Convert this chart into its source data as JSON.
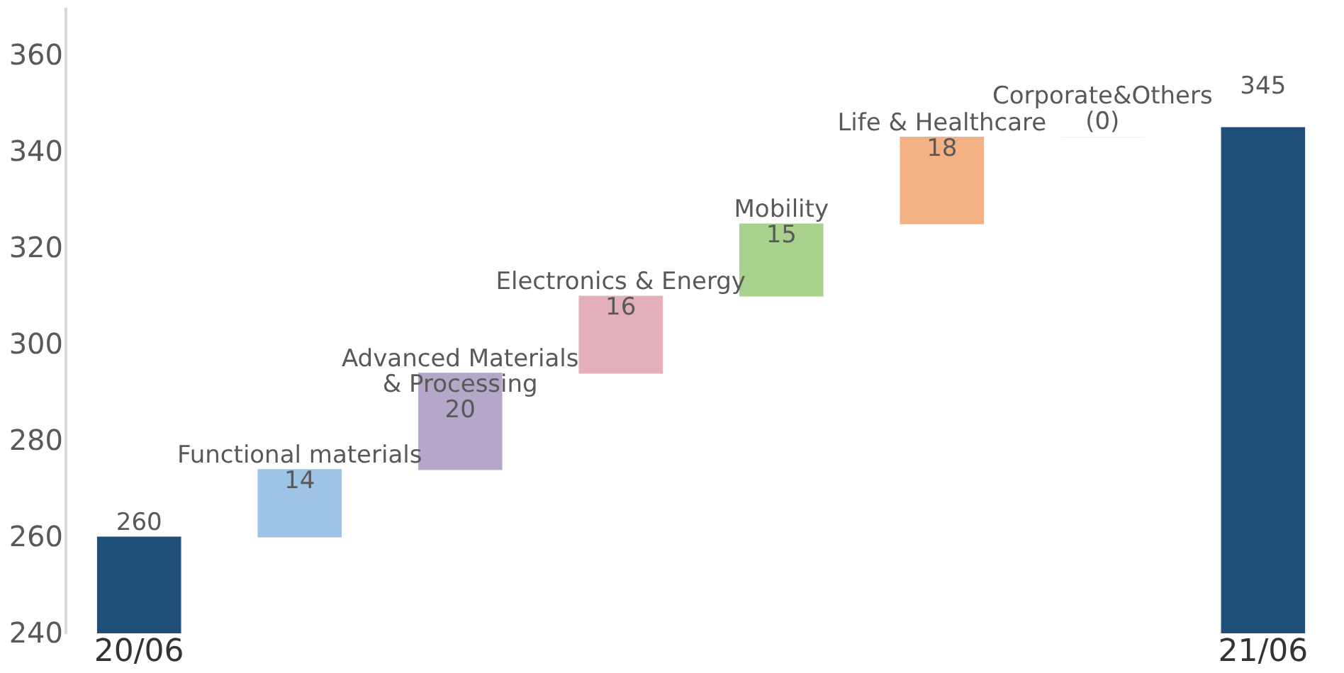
{
  "chart_data": {
    "type": "bar",
    "categories": [
      "20/06",
      null,
      null,
      null,
      null,
      null,
      null,
      "21/06"
    ],
    "base": [
      0,
      260,
      274,
      294,
      310,
      325,
      343,
      0
    ],
    "values": [
      260,
      14,
      20,
      16,
      15,
      18,
      0,
      345
    ],
    "colors": [
      "#1f4e79",
      "#9dc3e6",
      "#b4a7c9",
      "#e3afb8",
      "#a9d18e",
      "#f4b183",
      "#f2f2f2",
      "#1f4e79"
    ],
    "value_labels": [
      "260",
      "Functional materials\n14",
      "Advanced Materials\n& Processing\n20",
      "Electronics & Energy\n16",
      "Mobility\n15",
      "Life & Healthcare\n18",
      "Corporate&Others\n(0)",
      "345"
    ],
    "ylim": [
      240,
      370
    ],
    "yticks": [
      240,
      260,
      280,
      300,
      320,
      340,
      360
    ],
    "grid": false
  }
}
